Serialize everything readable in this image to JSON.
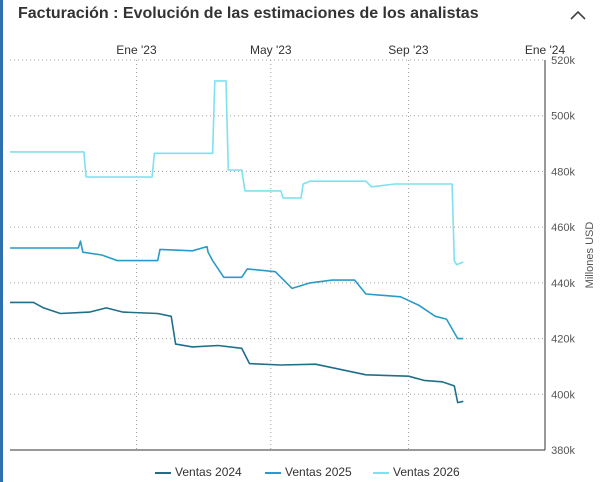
{
  "header": {
    "title": "Facturación : Evolución de las estimaciones de los analistas",
    "collapse_icon": "chevron-up-icon"
  },
  "colors": {
    "accent_rule": "#2f6fb0",
    "grid": "#a0a0a0",
    "axis_text": "#555555"
  },
  "chart_data": {
    "type": "line",
    "title": "Facturación : Evolución de las estimaciones de los analistas",
    "x_axis": {
      "ticks": [
        "Ene '23",
        "May '23",
        "Sep '23",
        "Ene '24"
      ],
      "position": "top",
      "range": [
        "2022-09-10",
        "2024-01-01"
      ]
    },
    "y_axis": {
      "label": "Millones USD",
      "position": "right",
      "ticks": [
        "380k",
        "400k",
        "420k",
        "440k",
        "460k",
        "480k",
        "500k",
        "520k"
      ],
      "range": [
        380000,
        520000
      ]
    },
    "grid": true,
    "legend_position": "bottom",
    "series": [
      {
        "name": "Ventas 2024",
        "color": "#1f6f8b",
        "points": [
          [
            "2022-09-10",
            433000
          ],
          [
            "2022-10-01",
            433000
          ],
          [
            "2022-10-10",
            431000
          ],
          [
            "2022-10-25",
            429000
          ],
          [
            "2022-11-20",
            429500
          ],
          [
            "2022-12-05",
            431000
          ],
          [
            "2022-12-20",
            429500
          ],
          [
            "2023-01-20",
            429000
          ],
          [
            "2023-02-01",
            428000
          ],
          [
            "2023-02-05",
            418000
          ],
          [
            "2023-02-20",
            417000
          ],
          [
            "2023-03-15",
            417500
          ],
          [
            "2023-04-05",
            416500
          ],
          [
            "2023-04-12",
            411000
          ],
          [
            "2023-05-10",
            410500
          ],
          [
            "2023-06-10",
            410800
          ],
          [
            "2023-07-25",
            407000
          ],
          [
            "2023-09-01",
            406500
          ],
          [
            "2023-09-15",
            405000
          ],
          [
            "2023-10-01",
            404500
          ],
          [
            "2023-10-12",
            403000
          ],
          [
            "2023-10-15",
            397000
          ],
          [
            "2023-10-20",
            397500
          ]
        ]
      },
      {
        "name": "Ventas 2025",
        "color": "#2a9bc7",
        "points": [
          [
            "2022-09-10",
            452500
          ],
          [
            "2022-11-10",
            452500
          ],
          [
            "2022-11-12",
            455000
          ],
          [
            "2022-11-14",
            451000
          ],
          [
            "2022-12-01",
            450000
          ],
          [
            "2022-12-15",
            448000
          ],
          [
            "2023-01-20",
            448000
          ],
          [
            "2023-01-22",
            452000
          ],
          [
            "2023-02-20",
            451500
          ],
          [
            "2023-03-05",
            453000
          ],
          [
            "2023-03-06",
            451000
          ],
          [
            "2023-03-10",
            448000
          ],
          [
            "2023-03-20",
            442000
          ],
          [
            "2023-04-05",
            442000
          ],
          [
            "2023-04-10",
            445000
          ],
          [
            "2023-05-05",
            444000
          ],
          [
            "2023-05-20",
            438000
          ],
          [
            "2023-06-05",
            440000
          ],
          [
            "2023-06-25",
            441000
          ],
          [
            "2023-07-15",
            441000
          ],
          [
            "2023-07-25",
            436000
          ],
          [
            "2023-08-25",
            435000
          ],
          [
            "2023-09-10",
            432000
          ],
          [
            "2023-09-25",
            428000
          ],
          [
            "2023-10-05",
            427000
          ],
          [
            "2023-10-15",
            420000
          ],
          [
            "2023-10-20",
            420000
          ]
        ]
      },
      {
        "name": "Ventas 2026",
        "color": "#7fe0ee",
        "points": [
          [
            "2022-09-10",
            487000
          ],
          [
            "2022-11-15",
            487000
          ],
          [
            "2022-11-17",
            478000
          ],
          [
            "2023-01-15",
            478000
          ],
          [
            "2023-01-17",
            486500
          ],
          [
            "2023-03-10",
            486500
          ],
          [
            "2023-03-12",
            512500
          ],
          [
            "2023-03-22",
            512500
          ],
          [
            "2023-03-24",
            480500
          ],
          [
            "2023-04-05",
            480500
          ],
          [
            "2023-04-08",
            473000
          ],
          [
            "2023-05-10",
            473000
          ],
          [
            "2023-05-12",
            470500
          ],
          [
            "2023-05-28",
            470500
          ],
          [
            "2023-05-30",
            475500
          ],
          [
            "2023-06-05",
            476500
          ],
          [
            "2023-07-25",
            476500
          ],
          [
            "2023-07-30",
            474500
          ],
          [
            "2023-08-20",
            475500
          ],
          [
            "2023-10-10",
            475500
          ],
          [
            "2023-10-12",
            448000
          ],
          [
            "2023-10-14",
            446500
          ],
          [
            "2023-10-20",
            447500
          ]
        ]
      }
    ]
  },
  "legend": {
    "items": [
      {
        "label": "Ventas 2024",
        "color": "#1f6f8b"
      },
      {
        "label": "Ventas 2025",
        "color": "#2a9bc7"
      },
      {
        "label": "Ventas 2026",
        "color": "#7fe0ee"
      }
    ]
  }
}
